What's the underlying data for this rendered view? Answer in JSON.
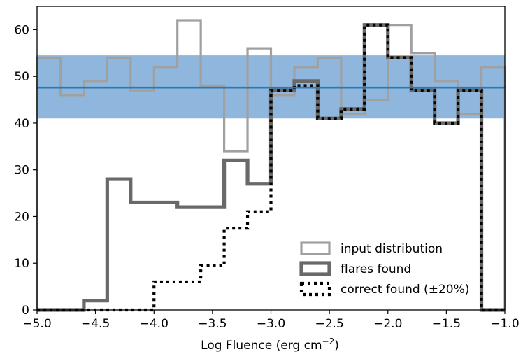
{
  "chart_data": {
    "type": "step-histogram",
    "xlabel": "Log Fluence (erg cm",
    "xlabel_sup": "−2",
    "xlabel_close": ")",
    "ylabel": "",
    "xlim": [
      -5.0,
      -1.0
    ],
    "ylim": [
      0,
      65
    ],
    "xticks": [
      {
        "v": -5.0,
        "label": "−5.0"
      },
      {
        "v": -4.5,
        "label": "−4.5"
      },
      {
        "v": -4.0,
        "label": "−4.0"
      },
      {
        "v": -3.5,
        "label": "−3.5"
      },
      {
        "v": -3.0,
        "label": "−3.0"
      },
      {
        "v": -2.5,
        "label": "−2.5"
      },
      {
        "v": -2.0,
        "label": "−2.0"
      },
      {
        "v": -1.5,
        "label": "−1.5"
      },
      {
        "v": -1.0,
        "label": "−1.0"
      }
    ],
    "yticks": [
      {
        "v": 0,
        "label": "0"
      },
      {
        "v": 10,
        "label": "10"
      },
      {
        "v": 20,
        "label": "20"
      },
      {
        "v": 30,
        "label": "30"
      },
      {
        "v": 40,
        "label": "40"
      },
      {
        "v": 50,
        "label": "50"
      },
      {
        "v": 60,
        "label": "60"
      }
    ],
    "bin_edges": [
      -5.0,
      -4.8,
      -4.6,
      -4.4,
      -4.2,
      -4.0,
      -3.8,
      -3.6,
      -3.4,
      -3.2,
      -3.0,
      -2.8,
      -2.6,
      -2.4,
      -2.2,
      -2.0,
      -1.8,
      -1.6,
      -1.4,
      -1.2,
      -1.0
    ],
    "band": {
      "low": 41,
      "high": 54.5,
      "color": "#8fb7dd"
    },
    "mean_line": {
      "value": 47.6,
      "color": "#2a78b8"
    },
    "series": [
      {
        "name": "input distribution",
        "color": "#a0a0a0",
        "style": "solid",
        "width": 3.2,
        "values": [
          54,
          46,
          49,
          54,
          47,
          52,
          62,
          48,
          34,
          56,
          46,
          52,
          54,
          42,
          45,
          61,
          55,
          49,
          42,
          52
        ]
      },
      {
        "name": "flares found",
        "color": "#696969",
        "style": "solid",
        "width": 5.2,
        "values": [
          0,
          0,
          2,
          28,
          23,
          23,
          22,
          22,
          32,
          27,
          47,
          49,
          41,
          43,
          61,
          54,
          47,
          40,
          47,
          0
        ]
      },
      {
        "name": "correct found (±20%)",
        "color": "#000000",
        "style": "dotted",
        "width": 4.2,
        "values": [
          0,
          0,
          0,
          0,
          0,
          6,
          6,
          9.5,
          17.5,
          21,
          47,
          48,
          41,
          43,
          61,
          54,
          47,
          40,
          47,
          0
        ]
      }
    ],
    "legend": "lower-right",
    "grid": false
  }
}
